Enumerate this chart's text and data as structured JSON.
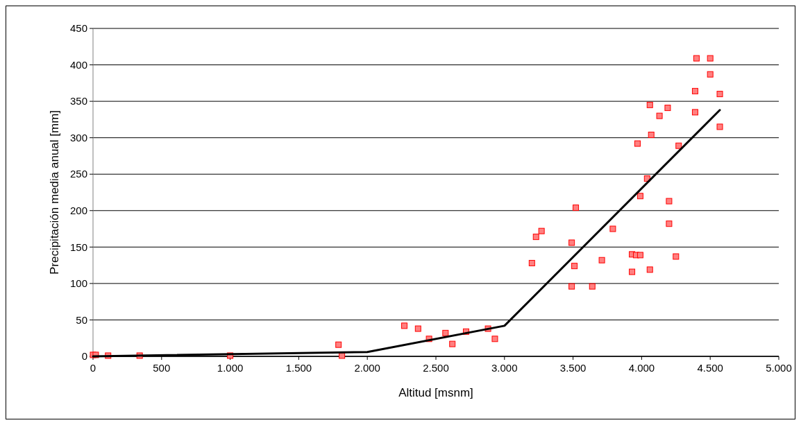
{
  "chart_data": {
    "type": "scatter",
    "xlabel": "Altitud [msnm]",
    "ylabel": "Precipitación media anual [mm]",
    "xlim": [
      0,
      5000
    ],
    "xticks": [
      0,
      500,
      {
        "value": 1000,
        "label": "1.000"
      },
      {
        "value": 1500,
        "label": "1.500"
      },
      {
        "value": 2000,
        "label": "2.000"
      },
      {
        "value": 2500,
        "label": "2.500"
      },
      {
        "value": 3000,
        "label": "3.000"
      },
      {
        "value": 3500,
        "label": "3.500"
      },
      {
        "value": 4000,
        "label": "4.000"
      },
      {
        "value": 4500,
        "label": "4.500"
      },
      {
        "value": 5000,
        "label": "5.000"
      }
    ],
    "ylim": [
      0,
      450
    ],
    "yticks": [
      0,
      50,
      100,
      150,
      200,
      250,
      300,
      350,
      400,
      450
    ],
    "grid": "y",
    "series": [
      {
        "color": "#ff8080",
        "marker": "square",
        "x": [
          0,
          20,
          110,
          340,
          1000,
          1790,
          1815,
          2270,
          2370,
          2450,
          2570,
          2620,
          2720,
          2880,
          2930,
          3200,
          3230,
          3270,
          3490,
          3490,
          3510,
          3520,
          3640,
          3710,
          3790,
          3930,
          3930,
          3960,
          3990,
          3970,
          3990,
          4040,
          4060,
          4070,
          4060,
          4130,
          4190,
          4200,
          4200,
          4250,
          4270,
          4390,
          4390,
          4400,
          4500,
          4500,
          4570,
          4570
        ],
        "values": [
          2,
          2,
          1,
          1,
          1,
          16,
          1,
          42,
          38,
          24,
          32,
          17,
          34,
          38,
          24,
          128,
          164,
          172,
          96,
          156,
          124,
          204,
          96,
          132,
          175,
          116,
          140,
          139,
          139,
          292,
          220,
          244,
          345,
          304,
          119,
          330,
          341,
          213,
          182,
          137,
          289,
          364,
          335,
          409,
          409,
          387,
          360,
          315
        ]
      },
      {
        "type": "line",
        "color": "#000000",
        "marker": "none",
        "line_style": "solid",
        "x": [
          0,
          2000,
          3000,
          4570
        ],
        "values": [
          0,
          6,
          42,
          338
        ]
      }
    ]
  }
}
